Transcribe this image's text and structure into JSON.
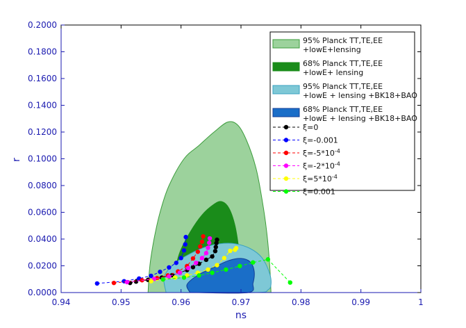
{
  "chart_data": {
    "type": "scatter",
    "title": "",
    "xlabel": "ns",
    "ylabel": "r",
    "xlim": [
      0.94,
      1.0
    ],
    "ylim": [
      0.0,
      0.2
    ],
    "grid": false,
    "legend_position": "top-right",
    "x_ticks": [
      "0.94",
      "0.95",
      "0.96",
      "0.97",
      "0.98",
      "0.99",
      "1"
    ],
    "y_ticks": [
      "0.0000",
      "0.0200",
      "0.0400",
      "0.0600",
      "0.0800",
      "0.1000",
      "0.1200",
      "0.1400",
      "0.1600",
      "0.1800",
      "0.2000"
    ],
    "contours": [
      {
        "legend": [
          "95% Planck TT,TE,EE",
          "+lowE+lensing"
        ],
        "fill": "#9cd29c",
        "stroke": "#3c9c3c",
        "points": [
          [
            0.9545,
            0.0
          ],
          [
            0.9548,
            0.02
          ],
          [
            0.9555,
            0.04
          ],
          [
            0.9565,
            0.06
          ],
          [
            0.958,
            0.08
          ],
          [
            0.9605,
            0.1
          ],
          [
            0.963,
            0.11
          ],
          [
            0.9655,
            0.12
          ],
          [
            0.9678,
            0.1275
          ],
          [
            0.9695,
            0.125
          ],
          [
            0.971,
            0.113
          ],
          [
            0.9725,
            0.093
          ],
          [
            0.9735,
            0.07
          ],
          [
            0.9743,
            0.045
          ],
          [
            0.9748,
            0.02
          ],
          [
            0.975,
            0.0
          ]
        ]
      },
      {
        "legend": [
          "68% Planck TT,TE,EE",
          "+lowE+ lensing"
        ],
        "fill": "#1a8c1a",
        "stroke": "#1a8c1a",
        "points": [
          [
            0.9588,
            0.0
          ],
          [
            0.959,
            0.015
          ],
          [
            0.9598,
            0.03
          ],
          [
            0.9615,
            0.045
          ],
          [
            0.9635,
            0.058
          ],
          [
            0.9655,
            0.066
          ],
          [
            0.9668,
            0.068
          ],
          [
            0.968,
            0.063
          ],
          [
            0.969,
            0.05
          ],
          [
            0.9697,
            0.03
          ],
          [
            0.9699,
            0.015
          ],
          [
            0.9699,
            0.0
          ]
        ]
      },
      {
        "legend": [
          "95% Planck TT,TE,EE",
          "+lowE + lensing +BK18+BAO"
        ],
        "fill": "#7ec8d6",
        "stroke": "#3aa2c0",
        "points": [
          [
            0.9575,
            0.0
          ],
          [
            0.9572,
            0.012
          ],
          [
            0.959,
            0.022
          ],
          [
            0.9615,
            0.029
          ],
          [
            0.964,
            0.034
          ],
          [
            0.9665,
            0.0365
          ],
          [
            0.969,
            0.0365
          ],
          [
            0.9715,
            0.033
          ],
          [
            0.9735,
            0.026
          ],
          [
            0.9748,
            0.014
          ],
          [
            0.975,
            0.006
          ],
          [
            0.9745,
            0.002
          ],
          [
            0.9725,
            0.0
          ],
          [
            0.96,
            0.0
          ]
        ]
      },
      {
        "legend": [
          "68% Planck TT,TE,EE",
          "+lowE + lensing +BK18+BAO"
        ],
        "fill": "#1a6ec8",
        "stroke": "#103c96",
        "points": [
          [
            0.9615,
            0.0
          ],
          [
            0.961,
            0.006
          ],
          [
            0.9628,
            0.013
          ],
          [
            0.9655,
            0.019
          ],
          [
            0.968,
            0.024
          ],
          [
            0.97,
            0.0255
          ],
          [
            0.9715,
            0.023
          ],
          [
            0.9722,
            0.016
          ],
          [
            0.972,
            0.007
          ],
          [
            0.9712,
            0.0
          ],
          [
            0.963,
            0.0
          ]
        ]
      }
    ],
    "series": [
      {
        "name": "ξ=0",
        "color": "#000000",
        "x": [
          0.9515,
          0.9525,
          0.9545,
          0.9568,
          0.9585,
          0.9598,
          0.961,
          0.962,
          0.963,
          0.9642,
          0.9652,
          0.9657,
          0.9658,
          0.9659,
          0.966
        ],
        "y": [
          0.0072,
          0.0082,
          0.0095,
          0.0112,
          0.013,
          0.0148,
          0.0168,
          0.019,
          0.0215,
          0.0245,
          0.027,
          0.031,
          0.034,
          0.037,
          0.0395
        ]
      },
      {
        "name": "ξ=-0.001",
        "color": "#0000ff",
        "x": [
          0.946,
          0.9505,
          0.953,
          0.955,
          0.9565,
          0.958,
          0.9592,
          0.96,
          0.9605,
          0.9607,
          0.9608
        ],
        "y": [
          0.0068,
          0.0085,
          0.0105,
          0.0125,
          0.0155,
          0.0188,
          0.0222,
          0.0258,
          0.0315,
          0.036,
          0.0415
        ]
      },
      {
        "name": "ξ=-5*10^-4",
        "color": "#ff0000",
        "x": [
          0.9488,
          0.9535,
          0.956,
          0.9578,
          0.9595,
          0.961,
          0.962,
          0.9628,
          0.9632,
          0.9635,
          0.9637
        ],
        "y": [
          0.0072,
          0.0092,
          0.0108,
          0.0128,
          0.0158,
          0.0198,
          0.0255,
          0.0305,
          0.0345,
          0.038,
          0.042
        ]
      },
      {
        "name": "ξ=-2*10^-4",
        "color": "#ff00ff",
        "x": [
          0.951,
          0.9555,
          0.958,
          0.9598,
          0.9612,
          0.9625,
          0.9635,
          0.9642,
          0.9645,
          0.9647,
          0.9648
        ],
        "y": [
          0.0078,
          0.0102,
          0.012,
          0.0148,
          0.0183,
          0.0222,
          0.0258,
          0.0295,
          0.0335,
          0.0372,
          0.0405
        ]
      },
      {
        "name": "ξ=5*10^-4",
        "color": "#ffff00",
        "x": [
          0.955,
          0.957,
          0.959,
          0.961,
          0.9628,
          0.9645,
          0.966,
          0.9672,
          0.9682,
          0.969,
          0.9692
        ],
        "y": [
          0.0085,
          0.0098,
          0.0112,
          0.0128,
          0.0148,
          0.0172,
          0.0205,
          0.0258,
          0.0312,
          0.032,
          0.0332
        ]
      },
      {
        "name": "ξ=0.001",
        "color": "#00ff00",
        "x": [
          0.957,
          0.9605,
          0.963,
          0.9652,
          0.9675,
          0.9698,
          0.972,
          0.9745,
          0.9782
        ],
        "y": [
          0.0098,
          0.0112,
          0.0128,
          0.0148,
          0.0172,
          0.0198,
          0.0225,
          0.0248,
          0.0075
        ]
      }
    ]
  }
}
